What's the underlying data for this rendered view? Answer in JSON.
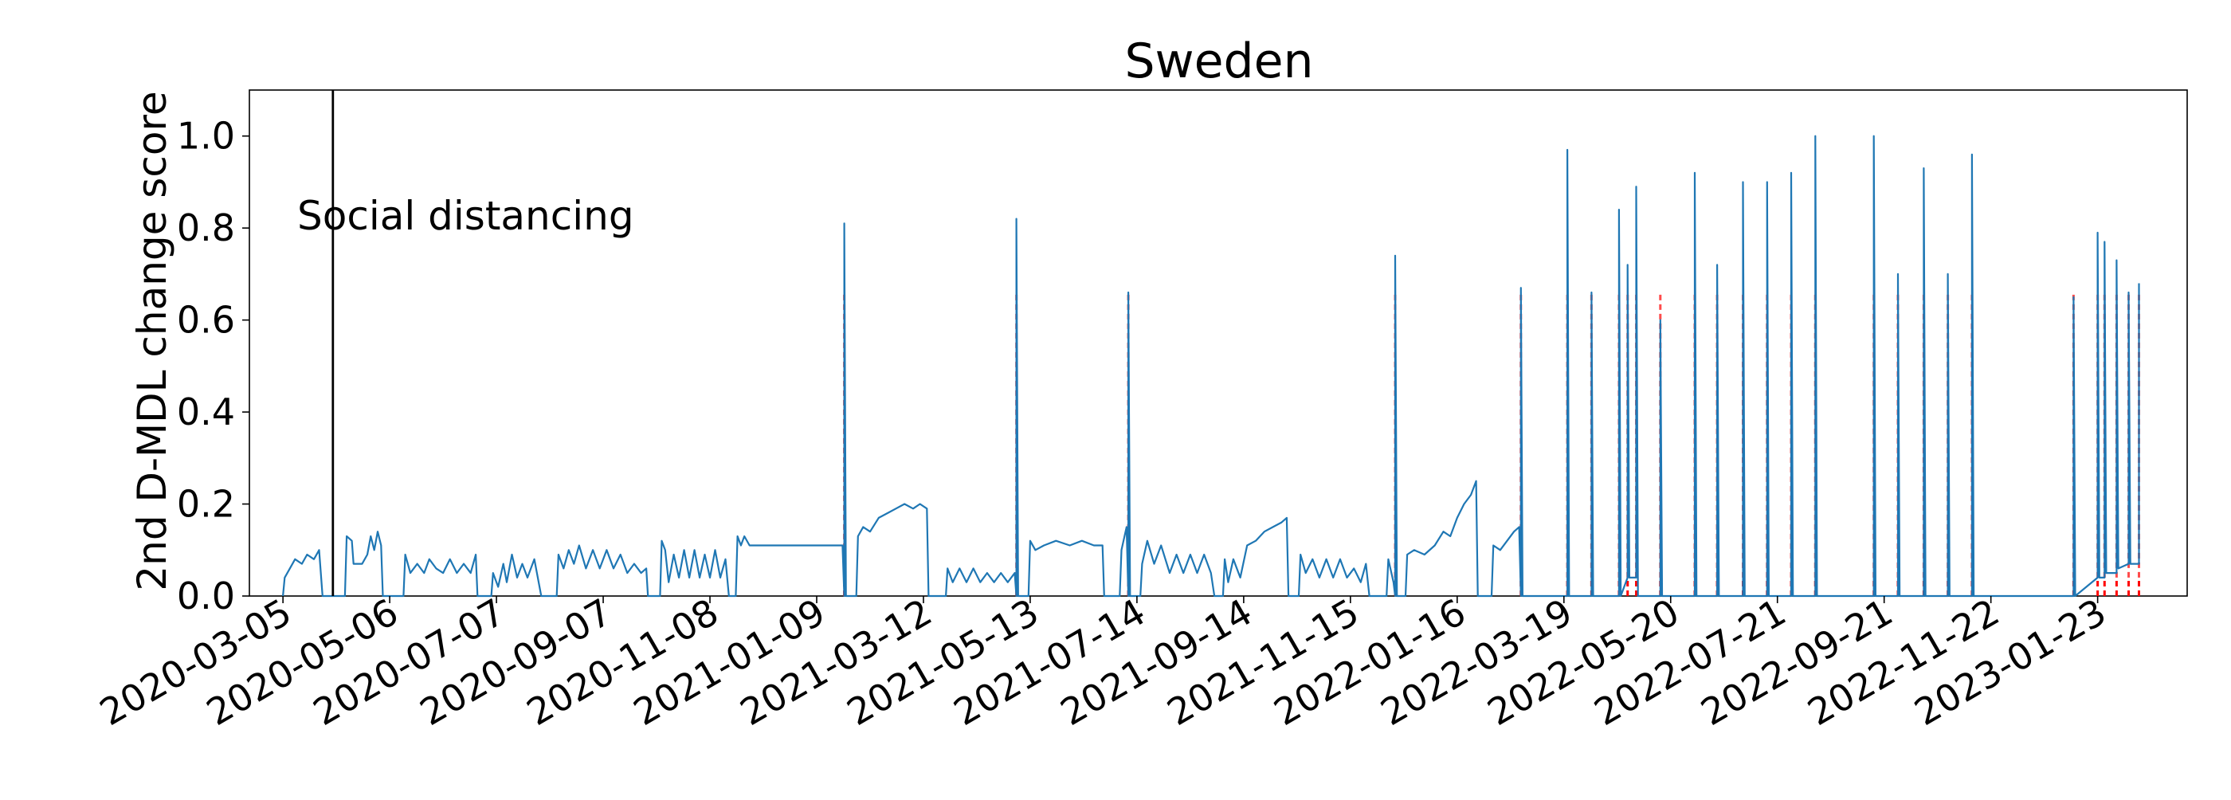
{
  "chart_data": {
    "type": "line",
    "title": "Sweden",
    "xlabel": "",
    "ylabel": "2nd D-MDL change score",
    "x_start": "2020-03-05",
    "x_end": "2023-03-16",
    "ylim": [
      0,
      1.1
    ],
    "yticks": [
      0.0,
      0.2,
      0.4,
      0.6,
      0.8,
      1.0
    ],
    "ytick_labels": [
      "0.0",
      "0.2",
      "0.4",
      "0.6",
      "0.8",
      "1.0"
    ],
    "xticks": [
      "2020-03-05",
      "2020-05-06",
      "2020-07-07",
      "2020-09-07",
      "2020-11-08",
      "2021-01-09",
      "2021-03-12",
      "2021-05-13",
      "2021-07-14",
      "2021-09-14",
      "2021-11-15",
      "2022-01-16",
      "2022-03-19",
      "2022-05-20",
      "2022-07-21",
      "2022-09-21",
      "2022-11-22",
      "2023-01-23"
    ],
    "grid": false,
    "colors": {
      "line": "#1f77b4",
      "alarm": "#ff0000",
      "event": "#000000"
    },
    "event": {
      "date": "2020-04-03",
      "label": "Social distancing"
    },
    "series": [
      {
        "points": [
          [
            "2020-03-05",
            0.0
          ],
          [
            "2020-03-06",
            0.04
          ],
          [
            "2020-03-09",
            0.06
          ],
          [
            "2020-03-12",
            0.08
          ],
          [
            "2020-03-16",
            0.07
          ],
          [
            "2020-03-19",
            0.09
          ],
          [
            "2020-03-23",
            0.08
          ],
          [
            "2020-03-26",
            0.1
          ],
          [
            "2020-03-28",
            0.0
          ],
          [
            "2020-03-30",
            0.0
          ],
          [
            "2020-04-10",
            0.0
          ],
          [
            "2020-04-11",
            0.13
          ],
          [
            "2020-04-14",
            0.12
          ],
          [
            "2020-04-15",
            0.07
          ],
          [
            "2020-04-20",
            0.07
          ],
          [
            "2020-04-23",
            0.09
          ],
          [
            "2020-04-25",
            0.13
          ],
          [
            "2020-04-27",
            0.1
          ],
          [
            "2020-04-29",
            0.14
          ],
          [
            "2020-05-01",
            0.11
          ],
          [
            "2020-05-02",
            0.0
          ],
          [
            "2020-05-14",
            0.0
          ],
          [
            "2020-05-15",
            0.09
          ],
          [
            "2020-05-18",
            0.05
          ],
          [
            "2020-05-22",
            0.07
          ],
          [
            "2020-05-26",
            0.05
          ],
          [
            "2020-05-29",
            0.08
          ],
          [
            "2020-06-02",
            0.06
          ],
          [
            "2020-06-06",
            0.05
          ],
          [
            "2020-06-10",
            0.08
          ],
          [
            "2020-06-14",
            0.05
          ],
          [
            "2020-06-18",
            0.07
          ],
          [
            "2020-06-22",
            0.05
          ],
          [
            "2020-06-25",
            0.09
          ],
          [
            "2020-06-26",
            0.0
          ],
          [
            "2020-07-04",
            0.0
          ],
          [
            "2020-07-05",
            0.05
          ],
          [
            "2020-07-08",
            0.02
          ],
          [
            "2020-07-11",
            0.07
          ],
          [
            "2020-07-13",
            0.03
          ],
          [
            "2020-07-16",
            0.09
          ],
          [
            "2020-07-19",
            0.04
          ],
          [
            "2020-07-22",
            0.07
          ],
          [
            "2020-07-25",
            0.04
          ],
          [
            "2020-07-29",
            0.08
          ],
          [
            "2020-08-02",
            0.0
          ],
          [
            "2020-08-11",
            0.0
          ],
          [
            "2020-08-12",
            0.09
          ],
          [
            "2020-08-15",
            0.06
          ],
          [
            "2020-08-18",
            0.1
          ],
          [
            "2020-08-21",
            0.07
          ],
          [
            "2020-08-24",
            0.11
          ],
          [
            "2020-08-28",
            0.06
          ],
          [
            "2020-09-01",
            0.1
          ],
          [
            "2020-09-05",
            0.06
          ],
          [
            "2020-09-09",
            0.1
          ],
          [
            "2020-09-13",
            0.06
          ],
          [
            "2020-09-17",
            0.09
          ],
          [
            "2020-09-21",
            0.05
          ],
          [
            "2020-09-25",
            0.07
          ],
          [
            "2020-09-29",
            0.05
          ],
          [
            "2020-10-02",
            0.06
          ],
          [
            "2020-10-03",
            0.0
          ],
          [
            "2020-10-10",
            0.0
          ],
          [
            "2020-10-11",
            0.12
          ],
          [
            "2020-10-13",
            0.1
          ],
          [
            "2020-10-15",
            0.03
          ],
          [
            "2020-10-18",
            0.09
          ],
          [
            "2020-10-21",
            0.04
          ],
          [
            "2020-10-24",
            0.1
          ],
          [
            "2020-10-27",
            0.04
          ],
          [
            "2020-10-30",
            0.1
          ],
          [
            "2020-11-02",
            0.04
          ],
          [
            "2020-11-05",
            0.09
          ],
          [
            "2020-11-08",
            0.04
          ],
          [
            "2020-11-11",
            0.1
          ],
          [
            "2020-11-14",
            0.04
          ],
          [
            "2020-11-17",
            0.08
          ],
          [
            "2020-11-19",
            0.0
          ],
          [
            "2020-11-23",
            0.0
          ],
          [
            "2020-11-24",
            0.13
          ],
          [
            "2020-11-26",
            0.11
          ],
          [
            "2020-11-28",
            0.13
          ],
          [
            "2020-12-01",
            0.11
          ],
          [
            "2020-12-15",
            0.11
          ],
          [
            "2020-12-30",
            0.11
          ],
          [
            "2021-01-13",
            0.11
          ],
          [
            "2021-01-24",
            0.11
          ],
          [
            "2021-01-25",
            0.0
          ],
          [
            "2021-01-25",
            0.81
          ],
          [
            "2021-01-26",
            0.0
          ],
          [
            "2021-02-01",
            0.0
          ],
          [
            "2021-02-02",
            0.13
          ],
          [
            "2021-02-05",
            0.15
          ],
          [
            "2021-02-09",
            0.14
          ],
          [
            "2021-02-14",
            0.17
          ],
          [
            "2021-02-19",
            0.18
          ],
          [
            "2021-02-24",
            0.19
          ],
          [
            "2021-03-01",
            0.2
          ],
          [
            "2021-03-06",
            0.19
          ],
          [
            "2021-03-10",
            0.2
          ],
          [
            "2021-03-14",
            0.19
          ],
          [
            "2021-03-15",
            0.0
          ],
          [
            "2021-03-25",
            0.0
          ],
          [
            "2021-03-26",
            0.06
          ],
          [
            "2021-03-29",
            0.03
          ],
          [
            "2021-04-02",
            0.06
          ],
          [
            "2021-04-06",
            0.03
          ],
          [
            "2021-04-10",
            0.06
          ],
          [
            "2021-04-14",
            0.03
          ],
          [
            "2021-04-18",
            0.05
          ],
          [
            "2021-04-22",
            0.03
          ],
          [
            "2021-04-26",
            0.05
          ],
          [
            "2021-04-30",
            0.03
          ],
          [
            "2021-05-04",
            0.05
          ],
          [
            "2021-05-05",
            0.0
          ],
          [
            "2021-05-05",
            0.82
          ],
          [
            "2021-05-06",
            0.0
          ],
          [
            "2021-05-12",
            0.0
          ],
          [
            "2021-05-13",
            0.12
          ],
          [
            "2021-05-16",
            0.1
          ],
          [
            "2021-05-21",
            0.11
          ],
          [
            "2021-05-28",
            0.12
          ],
          [
            "2021-06-05",
            0.11
          ],
          [
            "2021-06-12",
            0.12
          ],
          [
            "2021-06-19",
            0.11
          ],
          [
            "2021-06-24",
            0.11
          ],
          [
            "2021-06-25",
            0.0
          ],
          [
            "2021-07-04",
            0.0
          ],
          [
            "2021-07-05",
            0.1
          ],
          [
            "2021-07-08",
            0.15
          ],
          [
            "2021-07-09",
            0.0
          ],
          [
            "2021-07-09",
            0.66
          ],
          [
            "2021-07-10",
            0.0
          ],
          [
            "2021-07-16",
            0.0
          ],
          [
            "2021-07-17",
            0.07
          ],
          [
            "2021-07-20",
            0.12
          ],
          [
            "2021-07-24",
            0.07
          ],
          [
            "2021-07-28",
            0.11
          ],
          [
            "2021-08-02",
            0.05
          ],
          [
            "2021-08-06",
            0.09
          ],
          [
            "2021-08-10",
            0.05
          ],
          [
            "2021-08-14",
            0.09
          ],
          [
            "2021-08-18",
            0.05
          ],
          [
            "2021-08-22",
            0.09
          ],
          [
            "2021-08-26",
            0.05
          ],
          [
            "2021-08-28",
            0.0
          ],
          [
            "2021-09-02",
            0.0
          ],
          [
            "2021-09-03",
            0.08
          ],
          [
            "2021-09-05",
            0.03
          ],
          [
            "2021-09-08",
            0.08
          ],
          [
            "2021-09-12",
            0.04
          ],
          [
            "2021-09-16",
            0.11
          ],
          [
            "2021-09-21",
            0.12
          ],
          [
            "2021-09-26",
            0.14
          ],
          [
            "2021-10-01",
            0.15
          ],
          [
            "2021-10-06",
            0.16
          ],
          [
            "2021-10-09",
            0.17
          ],
          [
            "2021-10-10",
            0.0
          ],
          [
            "2021-10-16",
            0.0
          ],
          [
            "2021-10-17",
            0.09
          ],
          [
            "2021-10-20",
            0.05
          ],
          [
            "2021-10-24",
            0.08
          ],
          [
            "2021-10-28",
            0.04
          ],
          [
            "2021-11-01",
            0.08
          ],
          [
            "2021-11-05",
            0.04
          ],
          [
            "2021-11-09",
            0.08
          ],
          [
            "2021-11-13",
            0.04
          ],
          [
            "2021-11-17",
            0.06
          ],
          [
            "2021-11-21",
            0.03
          ],
          [
            "2021-11-24",
            0.07
          ],
          [
            "2021-11-26",
            0.0
          ],
          [
            "2021-12-06",
            0.0
          ],
          [
            "2021-12-07",
            0.08
          ],
          [
            "2021-12-10",
            0.03
          ],
          [
            "2021-12-11",
            0.0
          ],
          [
            "2021-12-11",
            0.74
          ],
          [
            "2021-12-12",
            0.0
          ],
          [
            "2021-12-17",
            0.0
          ],
          [
            "2021-12-18",
            0.09
          ],
          [
            "2021-12-22",
            0.1
          ],
          [
            "2021-12-28",
            0.09
          ],
          [
            "2022-01-03",
            0.11
          ],
          [
            "2022-01-08",
            0.14
          ],
          [
            "2022-01-12",
            0.13
          ],
          [
            "2022-01-16",
            0.17
          ],
          [
            "2022-01-20",
            0.2
          ],
          [
            "2022-01-24",
            0.22
          ],
          [
            "2022-01-27",
            0.25
          ],
          [
            "2022-01-28",
            0.0
          ],
          [
            "2022-02-05",
            0.0
          ],
          [
            "2022-02-06",
            0.11
          ],
          [
            "2022-02-10",
            0.1
          ],
          [
            "2022-02-14",
            0.12
          ],
          [
            "2022-02-18",
            0.14
          ],
          [
            "2022-02-21",
            0.15
          ],
          [
            "2022-02-22",
            0.0
          ],
          [
            "2022-02-22",
            0.67
          ],
          [
            "2022-02-23",
            0.0
          ],
          [
            "2022-03-21",
            0.0
          ],
          [
            "2022-03-21",
            0.97
          ],
          [
            "2022-03-22",
            0.0
          ],
          [
            "2022-04-04",
            0.0
          ],
          [
            "2022-04-04",
            0.66
          ],
          [
            "2022-04-05",
            0.0
          ],
          [
            "2022-04-20",
            0.0
          ],
          [
            "2022-04-20",
            0.84
          ],
          [
            "2022-04-21",
            0.0
          ],
          [
            "2022-04-25",
            0.04
          ],
          [
            "2022-04-25",
            0.72
          ],
          [
            "2022-04-26",
            0.04
          ],
          [
            "2022-04-30",
            0.04
          ],
          [
            "2022-04-30",
            0.89
          ],
          [
            "2022-05-01",
            0.0
          ],
          [
            "2022-05-14",
            0.0
          ],
          [
            "2022-05-14",
            0.6
          ],
          [
            "2022-05-15",
            0.0
          ],
          [
            "2022-06-03",
            0.0
          ],
          [
            "2022-06-03",
            0.92
          ],
          [
            "2022-06-04",
            0.0
          ],
          [
            "2022-06-16",
            0.0
          ],
          [
            "2022-06-16",
            0.72
          ],
          [
            "2022-06-17",
            0.0
          ],
          [
            "2022-07-01",
            0.0
          ],
          [
            "2022-07-01",
            0.9
          ],
          [
            "2022-07-02",
            0.0
          ],
          [
            "2022-07-15",
            0.0
          ],
          [
            "2022-07-15",
            0.9
          ],
          [
            "2022-07-16",
            0.0
          ],
          [
            "2022-07-29",
            0.0
          ],
          [
            "2022-07-29",
            0.92
          ],
          [
            "2022-07-30",
            0.0
          ],
          [
            "2022-08-12",
            0.0
          ],
          [
            "2022-08-12",
            1.0
          ],
          [
            "2022-08-13",
            0.0
          ],
          [
            "2022-09-15",
            0.0
          ],
          [
            "2022-09-15",
            1.0
          ],
          [
            "2022-09-16",
            0.0
          ],
          [
            "2022-09-29",
            0.0
          ],
          [
            "2022-09-29",
            0.7
          ],
          [
            "2022-09-30",
            0.0
          ],
          [
            "2022-10-14",
            0.0
          ],
          [
            "2022-10-14",
            0.93
          ],
          [
            "2022-10-15",
            0.0
          ],
          [
            "2022-10-28",
            0.0
          ],
          [
            "2022-10-28",
            0.7
          ],
          [
            "2022-10-29",
            0.0
          ],
          [
            "2022-11-11",
            0.0
          ],
          [
            "2022-11-11",
            0.96
          ],
          [
            "2022-11-12",
            0.0
          ],
          [
            "2023-01-09",
            0.0
          ],
          [
            "2023-01-09",
            0.65
          ],
          [
            "2023-01-10",
            0.0
          ],
          [
            "2023-01-23",
            0.04
          ],
          [
            "2023-01-23",
            0.79
          ],
          [
            "2023-01-24",
            0.04
          ],
          [
            "2023-01-27",
            0.04
          ],
          [
            "2023-01-27",
            0.77
          ],
          [
            "2023-01-28",
            0.05
          ],
          [
            "2023-02-03",
            0.05
          ],
          [
            "2023-02-03",
            0.73
          ],
          [
            "2023-02-04",
            0.06
          ],
          [
            "2023-02-10",
            0.07
          ],
          [
            "2023-02-10",
            0.66
          ],
          [
            "2023-02-11",
            0.07
          ],
          [
            "2023-02-16",
            0.07
          ],
          [
            "2023-02-16",
            0.68
          ]
        ]
      }
    ],
    "alarms": [
      "2021-01-25",
      "2021-05-05",
      "2021-07-09",
      "2021-12-11",
      "2022-02-22",
      "2022-03-21",
      "2022-04-04",
      "2022-04-20",
      "2022-04-25",
      "2022-04-30",
      "2022-05-14",
      "2022-06-03",
      "2022-06-16",
      "2022-07-01",
      "2022-07-15",
      "2022-07-29",
      "2022-08-12",
      "2022-09-15",
      "2022-09-29",
      "2022-10-14",
      "2022-10-28",
      "2022-11-11",
      "2023-01-09",
      "2023-01-23",
      "2023-01-27",
      "2023-02-03",
      "2023-02-10",
      "2023-02-16"
    ]
  }
}
